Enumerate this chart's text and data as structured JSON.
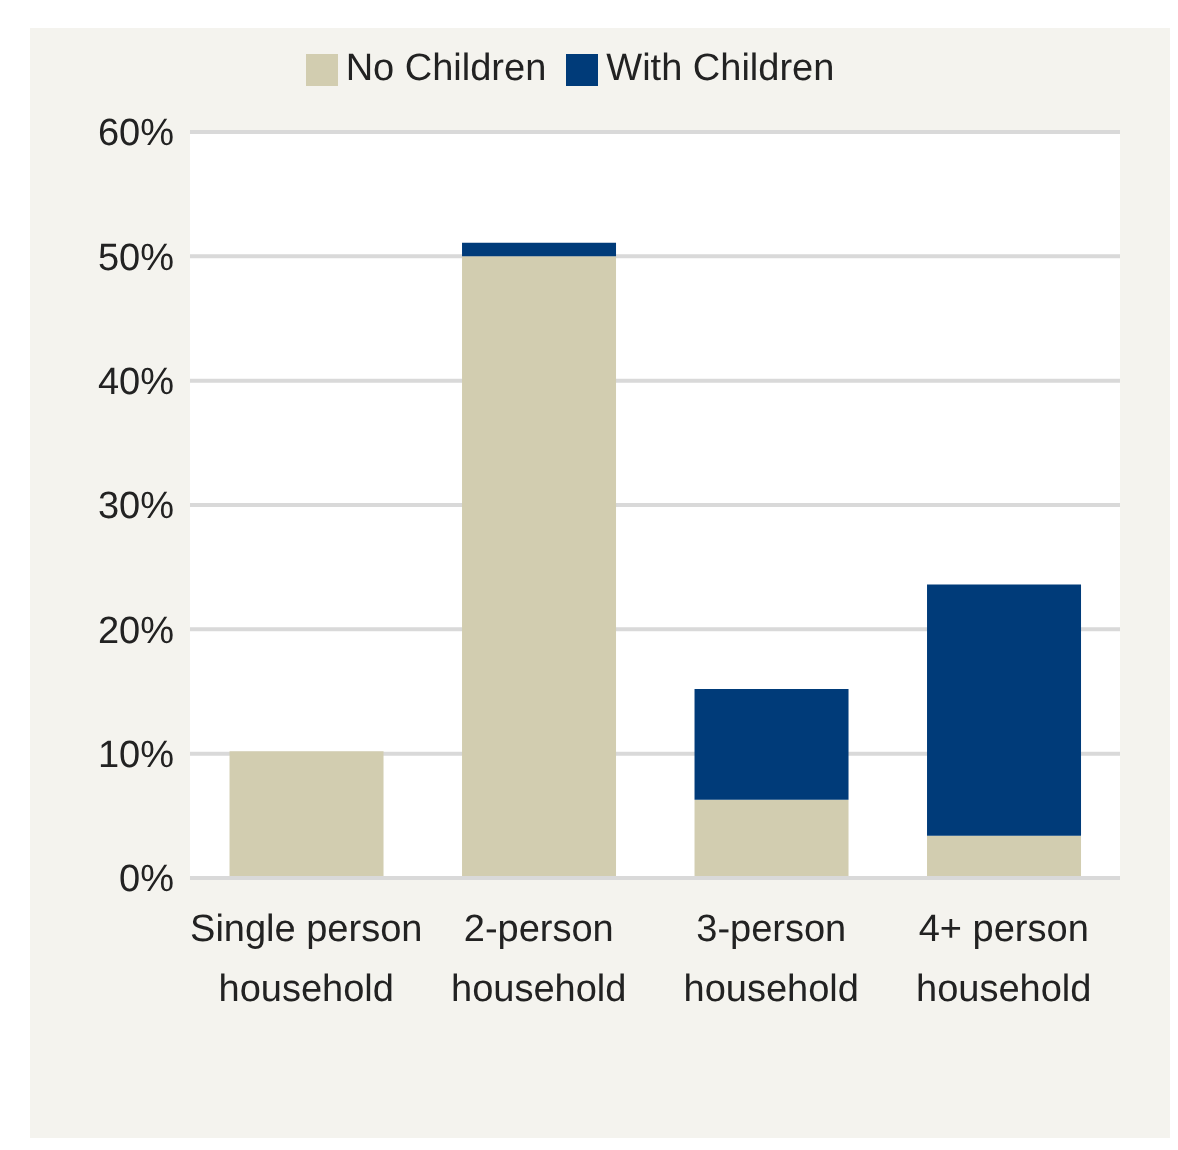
{
  "chart_data": {
    "type": "bar",
    "stacked": true,
    "categories": [
      "Single person household",
      "2-person household",
      "3-person household",
      "4+ person household"
    ],
    "series": [
      {
        "name": "No Children",
        "color": "#d2cdb0",
        "values": [
          10.2,
          50.0,
          6.3,
          3.4
        ]
      },
      {
        "name": "With Children",
        "color": "#003b79",
        "values": [
          0,
          1.1,
          8.9,
          20.2
        ]
      }
    ],
    "ylim": [
      0,
      60
    ],
    "yticks": [
      {
        "value": 0,
        "label": "0%"
      },
      {
        "value": 10,
        "label": "10%"
      },
      {
        "value": 20,
        "label": "20%"
      },
      {
        "value": 30,
        "label": "30%"
      },
      {
        "value": 40,
        "label": "40%"
      },
      {
        "value": 50,
        "label": "50%"
      },
      {
        "value": 60,
        "label": "60%"
      }
    ],
    "grid": "y",
    "legend": "top"
  }
}
